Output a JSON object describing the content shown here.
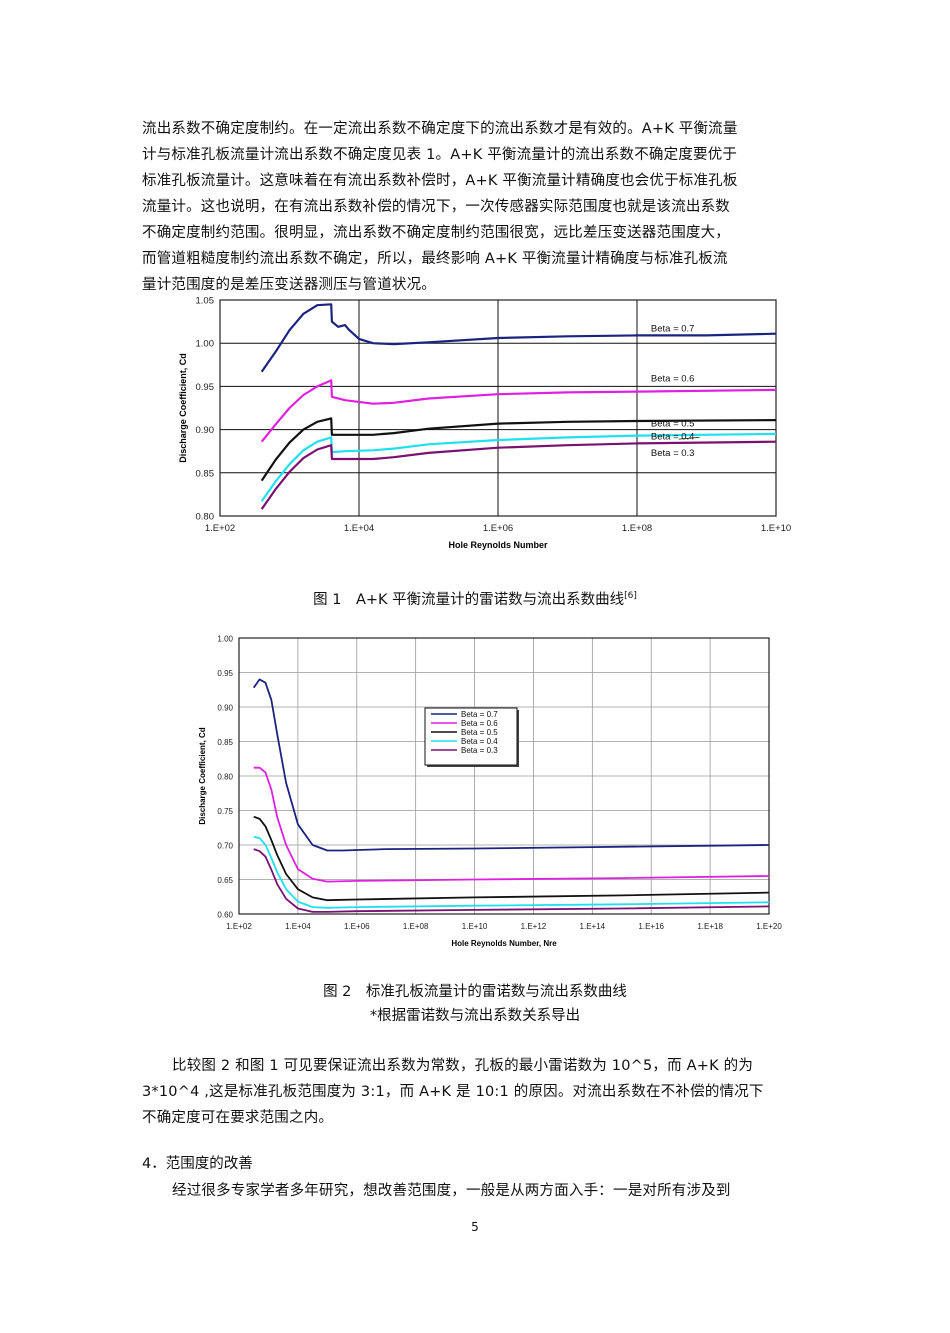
{
  "intro_lines": [
    "流出系数不确定度制约。在一定流出系数不确定度下的流出系数才是有效的。A+K 平衡流量",
    "计与标准孔板流量计流出系数不确定度见表 1。A+K 平衡流量计的流出系数不确定度要优于",
    "标准孔板流量计。这意味着在有流出系数补偿时，A+K 平衡流量计精确度也会优于标准孔板",
    "流量计。这也说明，在有流出系数补偿的情况下，一次传感器实际范围度也就是该流出系数",
    "不确定度制约范围。很明显，流出系数不确定度制约范围很宽，远比差压变送器范围度大，",
    "而管道粗糙度制约流出系数不确定，所以，最终影响 A+K 平衡流量计精确度与标准孔板流",
    "量计范围度的是差压变送器测压与管道状况。"
  ],
  "figure1": {
    "caption": "图 1　A+K 平衡流量计的雷诺数与流出系数曲线",
    "caption_ref": "[6]"
  },
  "figure2": {
    "caption": "图 2　标准孔板流量计的雷诺数与流出系数曲线",
    "caption_note": "*根据雷诺数与流出系数关系导出"
  },
  "compare_lines": [
    "比较图 2 和图 1 可见要保证流出系数为常数，孔板的最小雷诺数为 10^5，而 A+K 的为",
    "3*10^4 ,这是标准孔板范围度为 3:1，而 A+K 是 10:1 的原因。对流出系数在不补偿的情况下",
    "不确定度可在要求范围之内。"
  ],
  "section_heading": "4．范围度的改善",
  "section_first_line": "经过很多专家学者多年研究，想改善范围度，一般是从两方面入手：一是对所有涉及到",
  "page_number": "5",
  "chart_data": [
    {
      "type": "line",
      "xlabel": "Hole Reynolds Number",
      "ylabel": "Discharge Coefficient, Cd",
      "x_scale": "log",
      "xlim": [
        2,
        10
      ],
      "ylim": [
        0.8,
        1.05
      ],
      "x_ticks": [
        "1.E+02",
        "1.E+04",
        "1.E+06",
        "1.E+08",
        "1.E+10"
      ],
      "y_ticks": [
        "0.80",
        "0.85",
        "0.90",
        "0.95",
        "1.00",
        "1.05"
      ],
      "legend": "inline-labels",
      "series": [
        {
          "name": "Beta = 0.7",
          "color": "#1a237e",
          "points": [
            [
              2.6,
              0.967
            ],
            [
              2.8,
              0.99
            ],
            [
              3.0,
              1.015
            ],
            [
              3.2,
              1.034
            ],
            [
              3.4,
              1.044
            ],
            [
              3.6,
              1.045
            ],
            [
              3.61,
              1.025
            ],
            [
              3.7,
              1.019
            ],
            [
              3.8,
              1.021
            ],
            [
              3.85,
              1.016
            ],
            [
              4.0,
              1.005
            ],
            [
              4.2,
              1.0
            ],
            [
              4.5,
              0.999
            ],
            [
              5.0,
              1.001
            ],
            [
              6.0,
              1.006
            ],
            [
              7.0,
              1.008
            ],
            [
              8.0,
              1.009
            ],
            [
              9.0,
              1.009
            ],
            [
              10,
              1.011
            ]
          ]
        },
        {
          "name": "Beta = 0.6",
          "color": "#e020e0",
          "points": [
            [
              2.6,
              0.886
            ],
            [
              2.8,
              0.906
            ],
            [
              3.0,
              0.925
            ],
            [
              3.2,
              0.94
            ],
            [
              3.4,
              0.95
            ],
            [
              3.6,
              0.957
            ],
            [
              3.61,
              0.938
            ],
            [
              3.8,
              0.934
            ],
            [
              4.2,
              0.93
            ],
            [
              4.5,
              0.931
            ],
            [
              5.0,
              0.936
            ],
            [
              6.0,
              0.941
            ],
            [
              7.0,
              0.943
            ],
            [
              8.0,
              0.944
            ],
            [
              10,
              0.946
            ]
          ]
        },
        {
          "name": "Beta = 0.5",
          "color": "#111111",
          "points": [
            [
              2.6,
              0.841
            ],
            [
              2.8,
              0.865
            ],
            [
              3.0,
              0.885
            ],
            [
              3.2,
              0.9
            ],
            [
              3.4,
              0.909
            ],
            [
              3.6,
              0.913
            ],
            [
              3.61,
              0.894
            ],
            [
              3.8,
              0.894
            ],
            [
              4.2,
              0.894
            ],
            [
              4.5,
              0.896
            ],
            [
              5.0,
              0.901
            ],
            [
              6.0,
              0.907
            ],
            [
              7.0,
              0.909
            ],
            [
              8.0,
              0.91
            ],
            [
              10,
              0.911
            ]
          ]
        },
        {
          "name": "Beta = 0.4",
          "color": "#20e0f0",
          "points": [
            [
              2.6,
              0.817
            ],
            [
              2.8,
              0.84
            ],
            [
              3.0,
              0.86
            ],
            [
              3.2,
              0.876
            ],
            [
              3.4,
              0.886
            ],
            [
              3.6,
              0.891
            ],
            [
              3.61,
              0.874
            ],
            [
              3.8,
              0.875
            ],
            [
              4.2,
              0.876
            ],
            [
              4.5,
              0.878
            ],
            [
              5.0,
              0.883
            ],
            [
              6.0,
              0.888
            ],
            [
              7.0,
              0.891
            ],
            [
              8.0,
              0.893
            ],
            [
              10,
              0.895
            ]
          ]
        },
        {
          "name": "Beta = 0.3",
          "color": "#7a1070",
          "points": [
            [
              2.6,
              0.808
            ],
            [
              2.8,
              0.831
            ],
            [
              3.0,
              0.851
            ],
            [
              3.2,
              0.867
            ],
            [
              3.4,
              0.877
            ],
            [
              3.6,
              0.882
            ],
            [
              3.61,
              0.866
            ],
            [
              3.8,
              0.866
            ],
            [
              4.2,
              0.866
            ],
            [
              4.5,
              0.868
            ],
            [
              5.0,
              0.873
            ],
            [
              6.0,
              0.879
            ],
            [
              7.0,
              0.882
            ],
            [
              8.0,
              0.884
            ],
            [
              10,
              0.886
            ]
          ]
        }
      ],
      "inline_label_y": [
        1.01,
        0.952,
        0.9,
        0.885,
        0.866
      ]
    },
    {
      "type": "line",
      "xlabel": "Hole Reynolds Number, Nre",
      "ylabel": "Discharge Coefficient, Cd",
      "x_scale": "log",
      "xlim": [
        2,
        20
      ],
      "ylim": [
        0.6,
        1.0
      ],
      "x_ticks": [
        "1.E+02",
        "1.E+04",
        "1.E+06",
        "1.E+08",
        "1.E+10",
        "1.E+12",
        "1.E+14",
        "1.E+16",
        "1.E+18",
        "1.E+20"
      ],
      "y_ticks": [
        "0.60",
        "0.65",
        "0.70",
        "0.75",
        "0.80",
        "0.85",
        "0.90",
        "0.95",
        "1.00"
      ],
      "legend": "center",
      "series": [
        {
          "name": "Beta = 0.7",
          "color": "#1a237e",
          "points": [
            [
              2.5,
              0.928
            ],
            [
              2.7,
              0.94
            ],
            [
              2.9,
              0.935
            ],
            [
              3.1,
              0.91
            ],
            [
              3.3,
              0.86
            ],
            [
              3.6,
              0.79
            ],
            [
              4.0,
              0.73
            ],
            [
              4.5,
              0.7
            ],
            [
              5.0,
              0.692
            ],
            [
              5.5,
              0.692
            ],
            [
              7.0,
              0.694
            ],
            [
              10,
              0.695
            ],
            [
              14,
              0.697
            ],
            [
              18,
              0.699
            ],
            [
              20,
              0.7
            ]
          ]
        },
        {
          "name": "Beta = 0.6",
          "color": "#e020e0",
          "points": [
            [
              2.5,
              0.812
            ],
            [
              2.7,
              0.812
            ],
            [
              2.9,
              0.805
            ],
            [
              3.1,
              0.78
            ],
            [
              3.3,
              0.74
            ],
            [
              3.6,
              0.7
            ],
            [
              4.0,
              0.665
            ],
            [
              4.5,
              0.651
            ],
            [
              5.0,
              0.647
            ],
            [
              6.0,
              0.648
            ],
            [
              10,
              0.65
            ],
            [
              15,
              0.652
            ],
            [
              20,
              0.655
            ]
          ]
        },
        {
          "name": "Beta = 0.5",
          "color": "#111111",
          "points": [
            [
              2.5,
              0.741
            ],
            [
              2.7,
              0.738
            ],
            [
              2.9,
              0.727
            ],
            [
              3.1,
              0.707
            ],
            [
              3.3,
              0.685
            ],
            [
              3.6,
              0.658
            ],
            [
              4.0,
              0.636
            ],
            [
              4.5,
              0.624
            ],
            [
              5.0,
              0.62
            ],
            [
              6.0,
              0.621
            ],
            [
              10,
              0.624
            ],
            [
              15,
              0.627
            ],
            [
              20,
              0.631
            ]
          ]
        },
        {
          "name": "Beta = 0.4",
          "color": "#20e0f0",
          "points": [
            [
              2.5,
              0.712
            ],
            [
              2.7,
              0.71
            ],
            [
              2.9,
              0.7
            ],
            [
              3.1,
              0.681
            ],
            [
              3.3,
              0.66
            ],
            [
              3.6,
              0.636
            ],
            [
              4.0,
              0.618
            ],
            [
              4.5,
              0.61
            ],
            [
              5.0,
              0.609
            ],
            [
              6.0,
              0.61
            ],
            [
              10,
              0.612
            ],
            [
              15,
              0.614
            ],
            [
              20,
              0.617
            ]
          ]
        },
        {
          "name": "Beta = 0.3",
          "color": "#7a1070",
          "points": [
            [
              2.5,
              0.694
            ],
            [
              2.7,
              0.691
            ],
            [
              2.9,
              0.683
            ],
            [
              3.1,
              0.664
            ],
            [
              3.3,
              0.643
            ],
            [
              3.6,
              0.622
            ],
            [
              4.0,
              0.608
            ],
            [
              4.5,
              0.603
            ],
            [
              5.0,
              0.603
            ],
            [
              6.0,
              0.604
            ],
            [
              10,
              0.606
            ],
            [
              15,
              0.608
            ],
            [
              20,
              0.611
            ]
          ]
        }
      ]
    }
  ]
}
